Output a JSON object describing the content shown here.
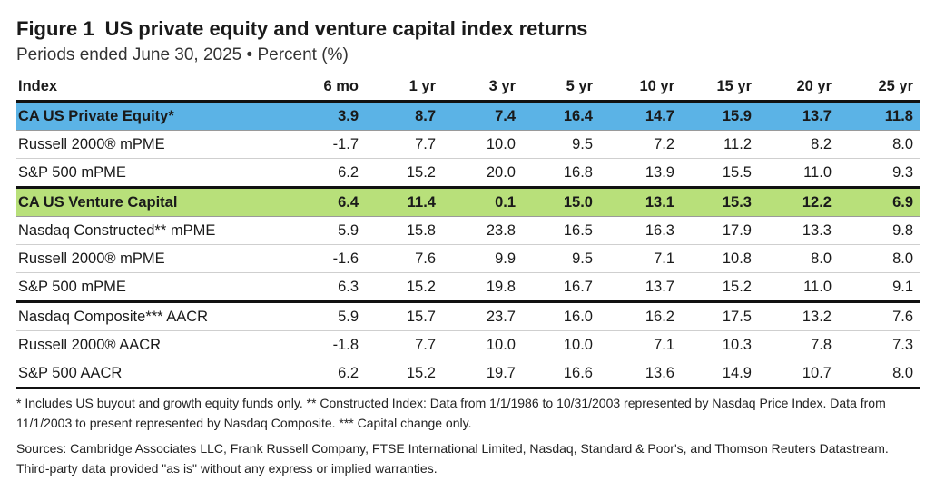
{
  "header": {
    "figure_label": "Figure 1",
    "title": "US private equity and venture capital index returns",
    "subtitle": "Periods ended June 30, 2025 • Percent (%)"
  },
  "chart_data": {
    "type": "table",
    "columns": [
      "Index",
      "6 mo",
      "1 yr",
      "3 yr",
      "5 yr",
      "10 yr",
      "15 yr",
      "20 yr",
      "25 yr"
    ],
    "rows": [
      {
        "name": "CA US Private Equity*",
        "values": [
          "3.9",
          "8.7",
          "7.4",
          "16.4",
          "14.7",
          "15.9",
          "13.7",
          "11.8"
        ],
        "highlight": "blue",
        "section_end": false
      },
      {
        "name": "Russell 2000® mPME",
        "values": [
          "-1.7",
          "7.7",
          "10.0",
          "9.5",
          "7.2",
          "11.2",
          "8.2",
          "8.0"
        ],
        "highlight": "",
        "section_end": false
      },
      {
        "name": "S&P 500 mPME",
        "values": [
          "6.2",
          "15.2",
          "20.0",
          "16.8",
          "13.9",
          "15.5",
          "11.0",
          "9.3"
        ],
        "highlight": "",
        "section_end": true
      },
      {
        "name": "CA US Venture Capital",
        "values": [
          "6.4",
          "11.4",
          "0.1",
          "15.0",
          "13.1",
          "15.3",
          "12.2",
          "6.9"
        ],
        "highlight": "green",
        "section_end": false
      },
      {
        "name": "Nasdaq Constructed** mPME",
        "values": [
          "5.9",
          "15.8",
          "23.8",
          "16.5",
          "16.3",
          "17.9",
          "13.3",
          "9.8"
        ],
        "highlight": "",
        "section_end": false
      },
      {
        "name": "Russell 2000® mPME",
        "values": [
          "-1.6",
          "7.6",
          "9.9",
          "9.5",
          "7.1",
          "10.8",
          "8.0",
          "8.0"
        ],
        "highlight": "",
        "section_end": false
      },
      {
        "name": "S&P 500 mPME",
        "values": [
          "6.3",
          "15.2",
          "19.8",
          "16.7",
          "13.7",
          "15.2",
          "11.0",
          "9.1"
        ],
        "highlight": "",
        "section_end": true
      },
      {
        "name": "Nasdaq Composite*** AACR",
        "values": [
          "5.9",
          "15.7",
          "23.7",
          "16.0",
          "16.2",
          "17.5",
          "13.2",
          "7.6"
        ],
        "highlight": "",
        "section_end": false
      },
      {
        "name": "Russell 2000® AACR",
        "values": [
          "-1.8",
          "7.7",
          "10.0",
          "10.0",
          "7.1",
          "10.3",
          "7.8",
          "7.3"
        ],
        "highlight": "",
        "section_end": false
      },
      {
        "name": "S&P 500 AACR",
        "values": [
          "6.2",
          "15.2",
          "19.7",
          "16.6",
          "13.6",
          "14.9",
          "10.7",
          "8.0"
        ],
        "highlight": "",
        "section_end": true
      }
    ],
    "highlight_colors": {
      "blue": "#5bb3e6",
      "green": "#b8e07a"
    }
  },
  "notes": {
    "footnote": "* Includes US buyout and growth equity funds only. ** Constructed Index: Data from 1/1/1986 to 10/31/2003 represented by Nasdaq Price Index. Data from 11/1/2003 to present represented by Nasdaq Composite. *** Capital change only.",
    "sources": "Sources: Cambridge Associates LLC, Frank Russell Company, FTSE International Limited, Nasdaq, Standard & Poor's, and Thomson Reuters Datastream. Third-party data provided \"as is\" without any express or implied warranties."
  }
}
